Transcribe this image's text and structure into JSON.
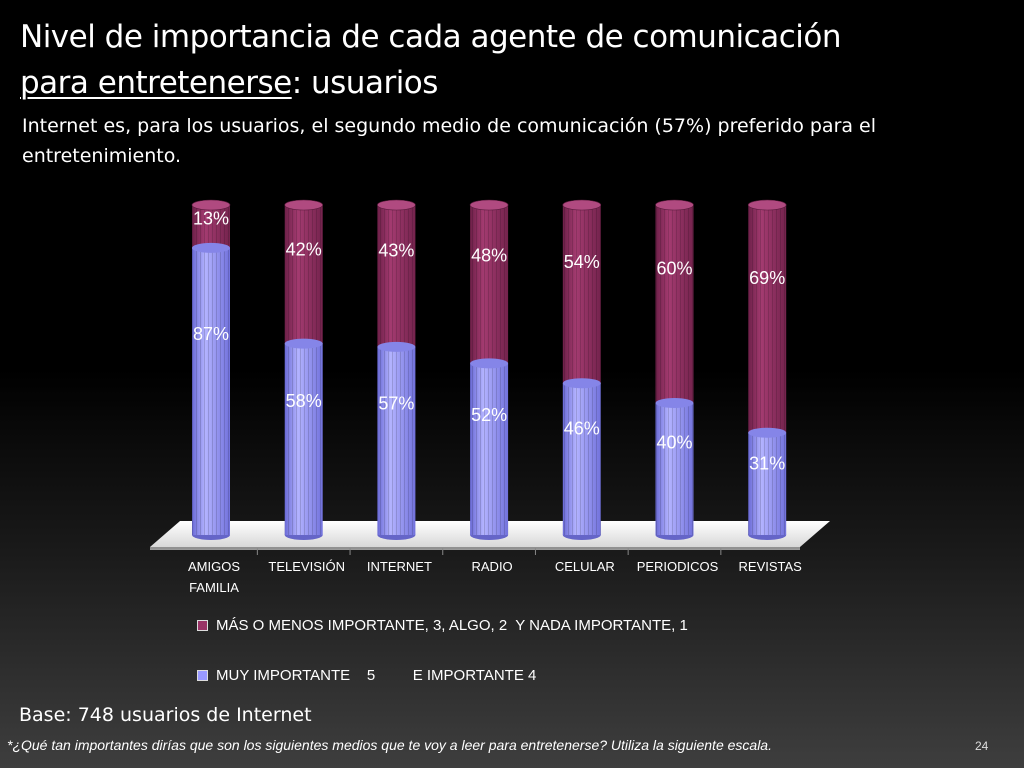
{
  "header": {
    "title_line1": "Nivel de importancia de cada agente de comunicación",
    "title_line2_underlined": "para entretenerse",
    "title_line2_rest": ":  usuarios",
    "subtitle": "Internet es, para los usuarios, el segundo medio de comunicación (57%) preferido para el entretenimiento."
  },
  "chart_data": {
    "type": "bar",
    "stacked": true,
    "categories": [
      "AMIGOS FAMILIA",
      "TELEVISIÓN",
      "INTERNET",
      "RADIO",
      "CELULAR",
      "PERIODICOS",
      "REVISTAS"
    ],
    "series": [
      {
        "name": "MUY IMPORTANTE    5         E IMPORTANTE 4",
        "values": [
          87,
          58,
          57,
          52,
          46,
          40,
          31
        ],
        "labels": [
          "87%",
          "58%",
          "57%",
          "52%",
          "46%",
          "40%",
          "31%"
        ],
        "color": "#9999ff"
      },
      {
        "name": "MÁS O MENOS IMPORTANTE, 3, ALGO, 2  Y NADA IMPORTANTE, 1",
        "values": [
          13,
          42,
          43,
          48,
          54,
          60,
          69
        ],
        "labels": [
          "13%",
          "42%",
          "43%",
          "48%",
          "54%",
          "60%",
          "69%"
        ],
        "color": "#993366"
      }
    ],
    "ylim": [
      0,
      100
    ],
    "legend_position": "bottom"
  },
  "legend": {
    "item1": "MÁS O MENOS IMPORTANTE, 3, ALGO, 2  Y NADA IMPORTANTE, 1",
    "item2": "MUY IMPORTANTE    5         E IMPORTANTE 4"
  },
  "footer": {
    "base": "Base: 748 usuarios de Internet",
    "footnote": "*¿Qué tan importantes dirías que son los siguientes medios que te voy a leer para entretenerse? Utiliza la siguiente escala.",
    "page": "24"
  }
}
